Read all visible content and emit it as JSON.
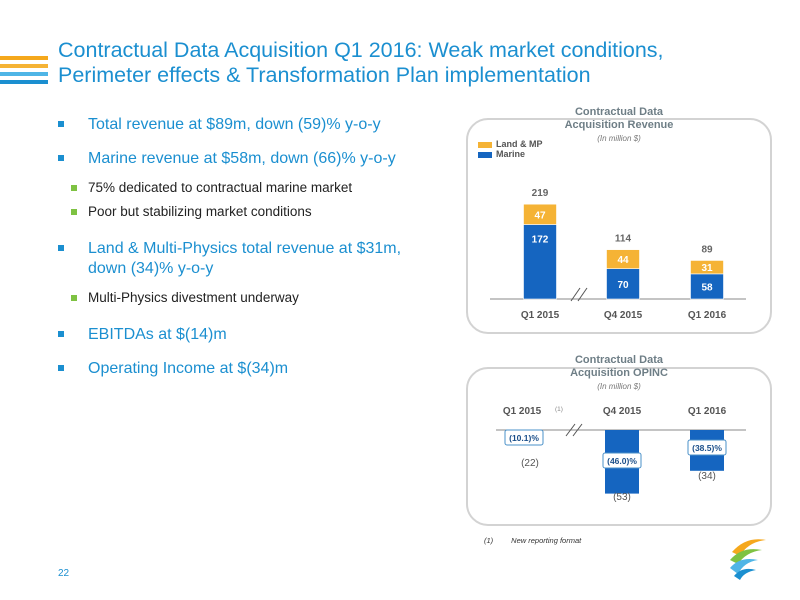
{
  "slide": {
    "title_line1": "Contractual Data Acquisition Q1 2016: Weak market conditions,",
    "title_line2": "Perimeter effects & Transformation Plan implementation",
    "page_number": "22"
  },
  "bullets": {
    "total_revenue": "Total revenue at $89m, down (59)% y-o-y",
    "marine_revenue": "Marine revenue at $58m, down (66)% y-o-y",
    "marine_sub1": "75% dedicated to contractual marine market",
    "marine_sub2": "Poor but stabilizing market conditions",
    "land_line1": "Land & Multi-Physics total revenue at $31m,",
    "land_line2": "down (34)% y-o-y",
    "land_sub1": "Multi-Physics divestment underway",
    "ebitdas": "EBITDAs at $(14)m",
    "opinc": "Operating Income at $(34)m"
  },
  "footnote": {
    "number": "(1)",
    "text": "New reporting format"
  },
  "colors": {
    "title": "#1b8fd0",
    "marine": "#1565c0",
    "land": "#f5b335",
    "sub_marker": "#7ec242",
    "panel_border": "#d3d3d3"
  },
  "chart_data": [
    {
      "type": "bar",
      "stacked": true,
      "title_line1": "Contractual Data",
      "title_line2": "Acquisition Revenue",
      "subtitle": "(In million $)",
      "categories": [
        "Q1 2015",
        "Q4 2015",
        "Q1 2016"
      ],
      "series": [
        {
          "name": "Marine",
          "values": [
            172,
            70,
            58
          ]
        },
        {
          "name": "Land & MP",
          "values": [
            47,
            44,
            31
          ]
        }
      ],
      "totals": [
        "219",
        "114",
        "89"
      ],
      "axis_break": "between Q1 2015 and Q4 2015",
      "legend_position": "top-left",
      "grid": false
    },
    {
      "type": "bar",
      "title_line1": "Contractual Data",
      "title_line2": "Acquisition OPINC",
      "subtitle": "(In million $)",
      "categories": [
        "Q1 2015",
        "Q4 2015",
        "Q1 2016"
      ],
      "category_footnote": "(1)",
      "values": [
        -22,
        -53,
        -34
      ],
      "value_labels": [
        "(22)",
        "(53)",
        "(34)"
      ],
      "margin_labels": [
        "(10.1)%",
        "(46.0)%",
        "(38.5)%"
      ],
      "axis_break": "between Q1 2015 and Q4 2015",
      "grid": false
    }
  ]
}
